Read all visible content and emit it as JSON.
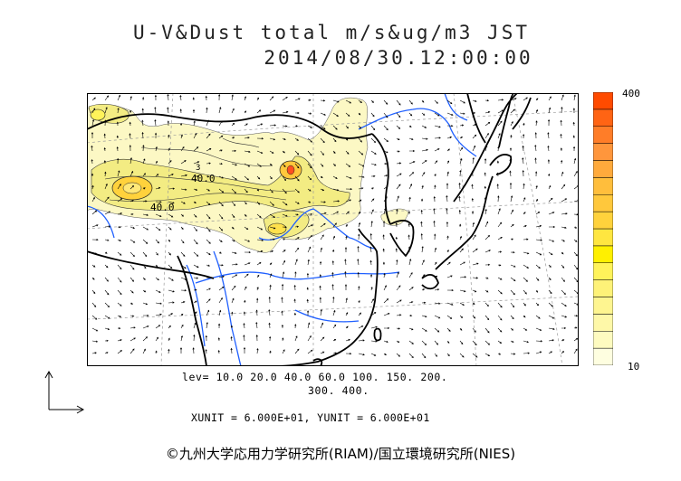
{
  "title": {
    "line1": "U-V&Dust total m/s&ug/m3 JST",
    "line2": "2014/08/30.12:00:00"
  },
  "colorbar": {
    "max_label": "400",
    "min_label": "10",
    "colors": [
      "#fefee0",
      "#fefbc0",
      "#fef8a8",
      "#fef590",
      "#fef278",
      "#fff35a",
      "#fff000",
      "#ffe640",
      "#ffd23c",
      "#ffc83c",
      "#ffbe3c",
      "#ffaa3c",
      "#ff963c",
      "#ff7d28",
      "#ff6414",
      "#ff4b00"
    ]
  },
  "contour_levels": {
    "line1": "lev= 10.0 20.0 40.0 60.0 100. 150. 200.",
    "line2": "300. 400."
  },
  "contour_labels": [
    "40.0",
    "40.0",
    "3"
  ],
  "vector_units": "XUNIT = 6.000E+01, YUNIT = 6.000E+01",
  "credit": "©九州大学応用力学研究所(RIAM)/国立環境研究所(NIES)",
  "map_colors": {
    "dust_low": "#fcf8c4",
    "dust_mid": "#f3ec83",
    "dust_high": "#ffd23c",
    "dust_peak": "#ff5020",
    "rivers": "#2060ff",
    "coast": "#000000",
    "grid": "#9a9a9a",
    "wind": "#000000"
  }
}
